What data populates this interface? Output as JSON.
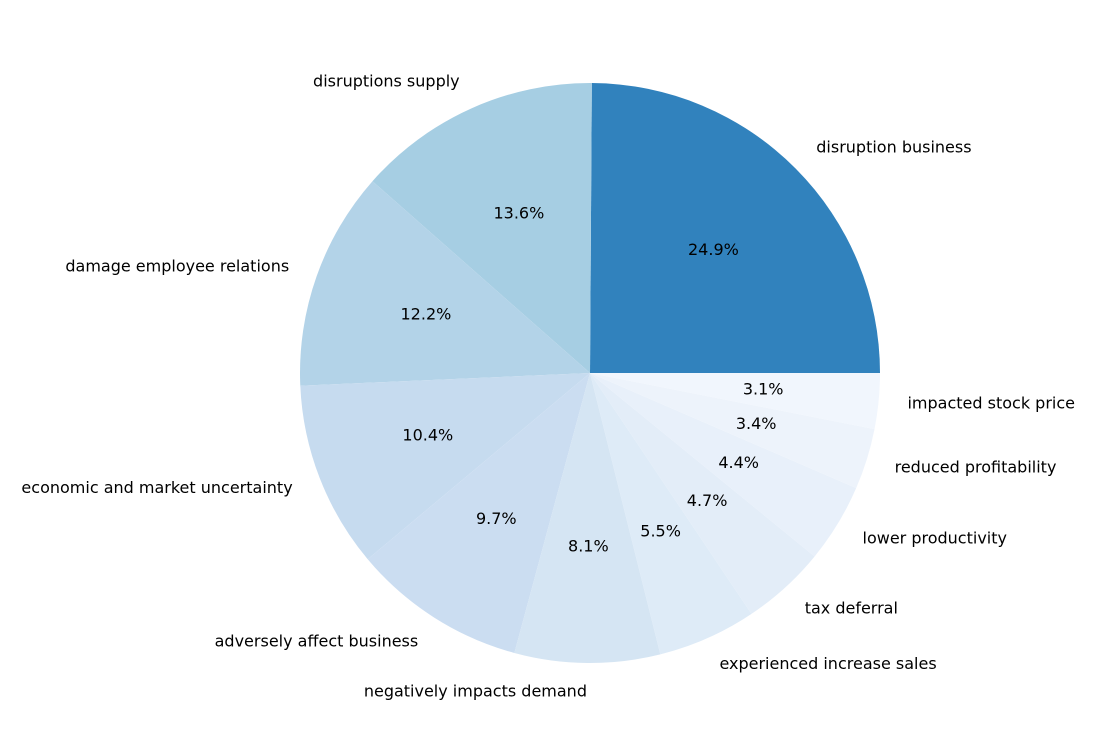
{
  "chart_data": {
    "type": "pie",
    "title": "",
    "start_angle_deg": 0,
    "direction": "counterclockwise",
    "slices": [
      {
        "label": "disruption business",
        "value": 24.9,
        "pct_label": "24.9%",
        "color": "#3182bd"
      },
      {
        "label": "disruptions supply",
        "value": 13.6,
        "pct_label": "13.6%",
        "color": "#a6cee3"
      },
      {
        "label": "damage employee relations",
        "value": 12.2,
        "pct_label": "12.2%",
        "color": "#b3d3e8"
      },
      {
        "label": "economic and market uncertainty",
        "value": 10.4,
        "pct_label": "10.4%",
        "color": "#c6dbef"
      },
      {
        "label": "adversely affect business",
        "value": 9.7,
        "pct_label": "9.7%",
        "color": "#cbddf1"
      },
      {
        "label": "negatively impacts demand",
        "value": 8.1,
        "pct_label": "8.1%",
        "color": "#d5e5f3"
      },
      {
        "label": "experienced increase sales",
        "value": 5.5,
        "pct_label": "5.5%",
        "color": "#deebf7"
      },
      {
        "label": "tax deferral",
        "value": 4.7,
        "pct_label": "4.7%",
        "color": "#e3edf8"
      },
      {
        "label": "lower productivity",
        "value": 4.4,
        "pct_label": "4.4%",
        "color": "#e8f0fa"
      },
      {
        "label": "reduced profitability",
        "value": 3.4,
        "pct_label": "3.4%",
        "color": "#edf3fb"
      },
      {
        "label": "impacted stock price",
        "value": 3.1,
        "pct_label": "3.1%",
        "color": "#f1f6fd"
      }
    ]
  }
}
